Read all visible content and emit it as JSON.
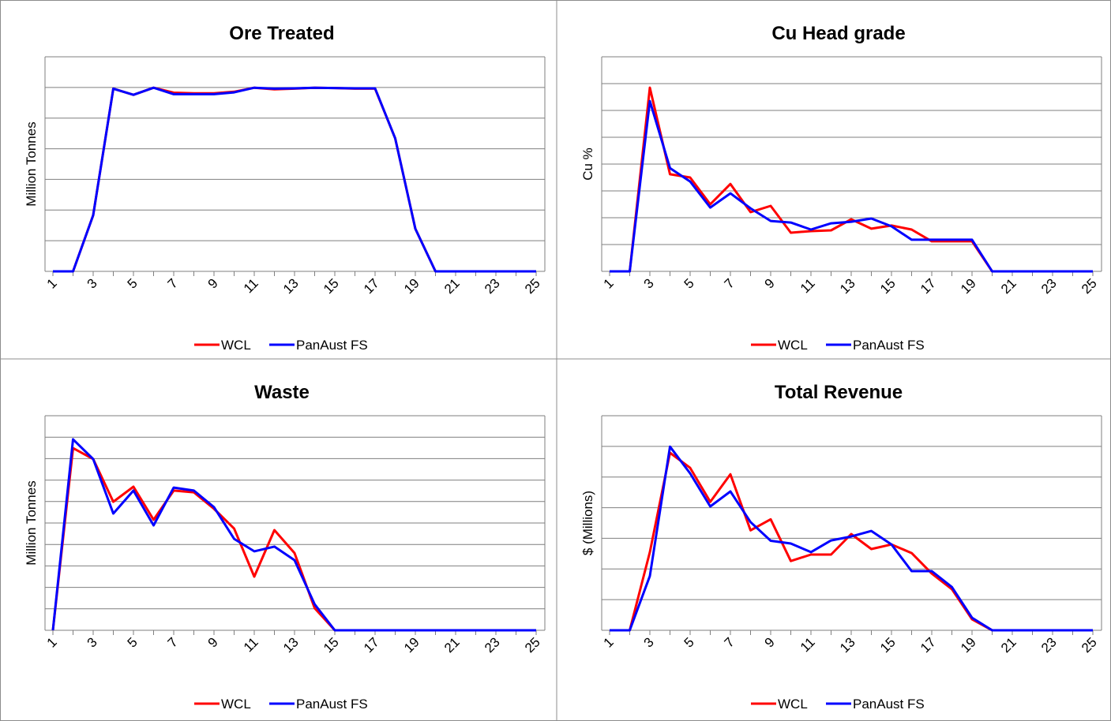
{
  "chart_data": [
    {
      "type": "line",
      "title": "Ore Treated",
      "ylabel": "Million Tonnes",
      "categories": [
        "1",
        null,
        "3",
        null,
        "5",
        null,
        "7",
        null,
        "9",
        null,
        "11",
        null,
        "13",
        null,
        "15",
        null,
        "17",
        null,
        "19",
        null,
        "21",
        null,
        "23",
        null,
        "25"
      ],
      "ylim": [
        0,
        7
      ],
      "grid_lines": [
        0,
        1,
        2,
        3,
        4,
        5,
        6,
        7
      ],
      "series": [
        {
          "name": "WCL",
          "color": "#ff0000",
          "values": [
            0,
            0,
            1.83,
            5.96,
            5.76,
            5.99,
            5.83,
            5.81,
            5.81,
            5.86,
            5.99,
            5.94,
            5.96,
            5.99,
            5.98,
            5.96,
            5.96,
            4.34,
            1.39,
            0,
            0,
            0,
            0,
            0,
            0
          ]
        },
        {
          "name": "PanAust FS",
          "color": "#0000ff",
          "values": [
            0,
            0,
            1.83,
            5.96,
            5.76,
            5.99,
            5.78,
            5.78,
            5.78,
            5.84,
            5.99,
            5.96,
            5.97,
            5.99,
            5.98,
            5.97,
            5.97,
            4.34,
            1.39,
            0,
            0,
            0,
            0,
            0,
            0
          ]
        }
      ]
    },
    {
      "type": "line",
      "title": "Cu Head grade",
      "ylabel": "Cu %",
      "categories": [
        "1",
        null,
        "3",
        null,
        "5",
        null,
        "7",
        null,
        "9",
        null,
        "11",
        null,
        "13",
        null,
        "15",
        null,
        "17",
        null,
        "19",
        null,
        "21",
        null,
        "23",
        null,
        "25"
      ],
      "ylim": [
        0,
        8
      ],
      "grid_lines": [
        0,
        1,
        2,
        3,
        4,
        5,
        6,
        7,
        8
      ],
      "series": [
        {
          "name": "WCL",
          "color": "#ff0000",
          "values": [
            0,
            0,
            6.85,
            3.62,
            3.5,
            2.5,
            3.26,
            2.21,
            2.44,
            1.44,
            1.5,
            1.53,
            1.94,
            1.59,
            1.71,
            1.56,
            1.12,
            1.12,
            1.12,
            0,
            0,
            0,
            0,
            0,
            0
          ]
        },
        {
          "name": "PanAust FS",
          "color": "#0000ff",
          "values": [
            0,
            0,
            6.35,
            3.85,
            3.35,
            2.38,
            2.91,
            2.35,
            1.88,
            1.82,
            1.56,
            1.79,
            1.85,
            1.97,
            1.68,
            1.18,
            1.18,
            1.18,
            1.18,
            0,
            0,
            0,
            0,
            0,
            0
          ]
        }
      ]
    },
    {
      "type": "line",
      "title": "Waste",
      "ylabel": "Million Tonnes",
      "categories": [
        "1",
        null,
        "3",
        null,
        "5",
        null,
        "7",
        null,
        "9",
        null,
        "11",
        null,
        "13",
        null,
        "15",
        null,
        "17",
        null,
        "19",
        null,
        "21",
        null,
        "23",
        null,
        "25"
      ],
      "ylim": [
        0,
        10
      ],
      "grid_lines": [
        0,
        1,
        2,
        3,
        4,
        5,
        6,
        7,
        8,
        9,
        10
      ],
      "series": [
        {
          "name": "WCL",
          "color": "#ff0000",
          "values": [
            0,
            8.49,
            7.98,
            5.99,
            6.69,
            5.15,
            6.51,
            6.43,
            5.66,
            4.74,
            2.5,
            4.67,
            3.6,
            1.03,
            0,
            0,
            0,
            0,
            0,
            0,
            0,
            0,
            0,
            0,
            0
          ]
        },
        {
          "name": "PanAust FS",
          "color": "#0000ff",
          "values": [
            0,
            8.9,
            7.98,
            5.44,
            6.51,
            4.89,
            6.65,
            6.51,
            5.74,
            4.26,
            3.68,
            3.9,
            3.27,
            1.21,
            0,
            0,
            0,
            0,
            0,
            0,
            0,
            0,
            0,
            0,
            0
          ]
        }
      ]
    },
    {
      "type": "line",
      "title": "Total Revenue",
      "ylabel": "$ (Millions)",
      "categories": [
        "1",
        null,
        "3",
        null,
        "5",
        null,
        "7",
        null,
        "9",
        null,
        "11",
        null,
        "13",
        null,
        "15",
        null,
        "17",
        null,
        "19",
        null,
        "21",
        null,
        "23",
        null,
        "25"
      ],
      "ylim": [
        0,
        7
      ],
      "grid_lines": [
        0,
        1,
        2,
        3,
        4,
        5,
        6,
        7
      ],
      "series": [
        {
          "name": "WCL",
          "color": "#ff0000",
          "values": [
            0,
            0,
            2.55,
            5.79,
            5.3,
            4.19,
            5.09,
            3.26,
            3.62,
            2.26,
            2.47,
            2.47,
            3.14,
            2.65,
            2.8,
            2.52,
            1.85,
            1.34,
            0.36,
            0,
            0,
            0,
            0,
            0,
            0
          ]
        },
        {
          "name": "PanAust FS",
          "color": "#0000ff",
          "values": [
            0,
            0,
            1.77,
            5.99,
            5.12,
            4.04,
            4.53,
            3.53,
            2.92,
            2.83,
            2.55,
            2.93,
            3.06,
            3.24,
            2.8,
            1.93,
            1.93,
            1.41,
            0.41,
            0,
            0,
            0,
            0,
            0,
            0
          ]
        }
      ]
    }
  ]
}
